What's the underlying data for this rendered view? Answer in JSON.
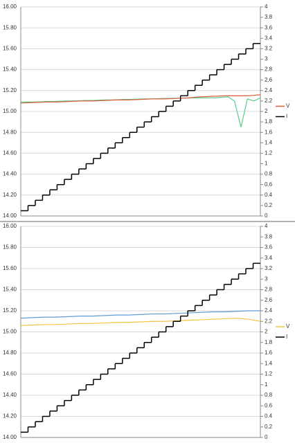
{
  "chart_data": [
    {
      "type": "line",
      "ylim": [
        14,
        16
      ],
      "yticks": [
        {
          "value": 14,
          "label": "14.00"
        },
        {
          "value": 14.2,
          "label": "14.20"
        },
        {
          "value": 14.4,
          "label": "14.40"
        },
        {
          "value": 14.6,
          "label": "14.60"
        },
        {
          "value": 14.8,
          "label": "14.80"
        },
        {
          "value": 15,
          "label": "15.00"
        },
        {
          "value": 15.2,
          "label": "15.20"
        },
        {
          "value": 15.4,
          "label": "15.40"
        },
        {
          "value": 15.6,
          "label": "15.60"
        },
        {
          "value": 15.8,
          "label": "15.80"
        },
        {
          "value": 16,
          "label": "16.00"
        }
      ],
      "y2lim": [
        0,
        4
      ],
      "y2ticks": [
        0,
        0.2,
        0.4,
        0.6,
        0.8,
        1,
        1.2,
        1.4,
        1.6,
        1.8,
        2,
        2.2,
        2.4,
        2.6,
        2.8,
        3,
        3.2,
        3.4,
        3.6,
        3.8,
        4
      ],
      "grid": true,
      "legend": "right",
      "series": [
        {
          "color": "#5cc98a",
          "values": [
            15.09,
            15.09,
            15.09,
            15.092,
            15.095,
            15.095,
            15.098,
            15.1,
            15.1,
            15.102,
            15.105,
            15.105,
            15.108,
            15.11,
            15.11,
            15.112,
            15.115,
            15.115,
            15.118,
            15.12,
            15.12,
            15.122,
            15.124,
            15.125,
            15.126,
            15.127,
            15.128,
            15.13,
            15.13,
            15.13,
            15.13,
            15.135,
            15.14,
            15.1,
            14.85,
            15.12,
            15.1,
            15.13
          ]
        },
        {
          "name": "V",
          "color": "#d9603b",
          "values": [
            15.08,
            15.085,
            15.09,
            15.09,
            15.095,
            15.1,
            15.1,
            15.105,
            15.11,
            15.11,
            15.115,
            15.12,
            15.12,
            15.125,
            15.13,
            15.14,
            15.145,
            15.15,
            15.15,
            15.15,
            15.16
          ]
        },
        {
          "name": "I",
          "color": "#000000",
          "axis": "y2",
          "drawstyle": "steps",
          "values": [
            0.1,
            0.2,
            0.3,
            0.4,
            0.5,
            0.6,
            0.7,
            0.8,
            0.9,
            1,
            1.1,
            1.2,
            1.3,
            1.4,
            1.5,
            1.6,
            1.7,
            1.8,
            1.9,
            2,
            2.1,
            2.2,
            2.3,
            2.4,
            2.5,
            2.6,
            2.7,
            2.8,
            2.9,
            3,
            3.1,
            3.2,
            3.3
          ]
        }
      ]
    },
    {
      "type": "line",
      "ylim": [
        14,
        16
      ],
      "yticks": [
        {
          "value": 14,
          "label": "14.00"
        },
        {
          "value": 14.2,
          "label": "14.20"
        },
        {
          "value": 14.4,
          "label": "14.40"
        },
        {
          "value": 14.6,
          "label": "14.60"
        },
        {
          "value": 14.8,
          "label": "14.80"
        },
        {
          "value": 15,
          "label": "15.00"
        },
        {
          "value": 15.2,
          "label": "15.20"
        },
        {
          "value": 15.4,
          "label": "15.40"
        },
        {
          "value": 15.6,
          "label": "15.60"
        },
        {
          "value": 15.8,
          "label": "15.80"
        },
        {
          "value": 16,
          "label": "16.00"
        }
      ],
      "y2lim": [
        0,
        4
      ],
      "y2ticks": [
        0,
        0.2,
        0.4,
        0.6,
        0.8,
        1,
        1.2,
        1.4,
        1.6,
        1.8,
        2,
        2.2,
        2.4,
        2.6,
        2.8,
        3,
        3.2,
        3.4,
        3.6,
        3.8,
        4
      ],
      "grid": true,
      "legend": "right",
      "series": [
        {
          "color": "#5b9bd5",
          "values": [
            15.13,
            15.135,
            15.14,
            15.14,
            15.145,
            15.15,
            15.15,
            15.155,
            15.16,
            15.16,
            15.165,
            15.17,
            15.17,
            15.175,
            15.18,
            15.185,
            15.19,
            15.19,
            15.195,
            15.2,
            15.2
          ]
        },
        {
          "name": "V",
          "color": "#f5c342",
          "values": [
            15.06,
            15.065,
            15.07,
            15.07,
            15.075,
            15.08,
            15.08,
            15.085,
            15.09,
            15.09,
            15.095,
            15.1,
            15.1,
            15.105,
            15.11,
            15.115,
            15.12,
            15.125,
            15.13,
            15.12,
            15.1
          ]
        },
        {
          "name": "I",
          "color": "#000000",
          "axis": "y2",
          "drawstyle": "steps",
          "values": [
            0.1,
            0.2,
            0.3,
            0.4,
            0.5,
            0.6,
            0.7,
            0.8,
            0.9,
            1,
            1.1,
            1.2,
            1.3,
            1.4,
            1.5,
            1.6,
            1.7,
            1.8,
            1.9,
            2,
            2.1,
            2.2,
            2.3,
            2.4,
            2.5,
            2.6,
            2.7,
            2.8,
            2.9,
            3,
            3.1,
            3.2,
            3.3
          ]
        }
      ]
    }
  ]
}
